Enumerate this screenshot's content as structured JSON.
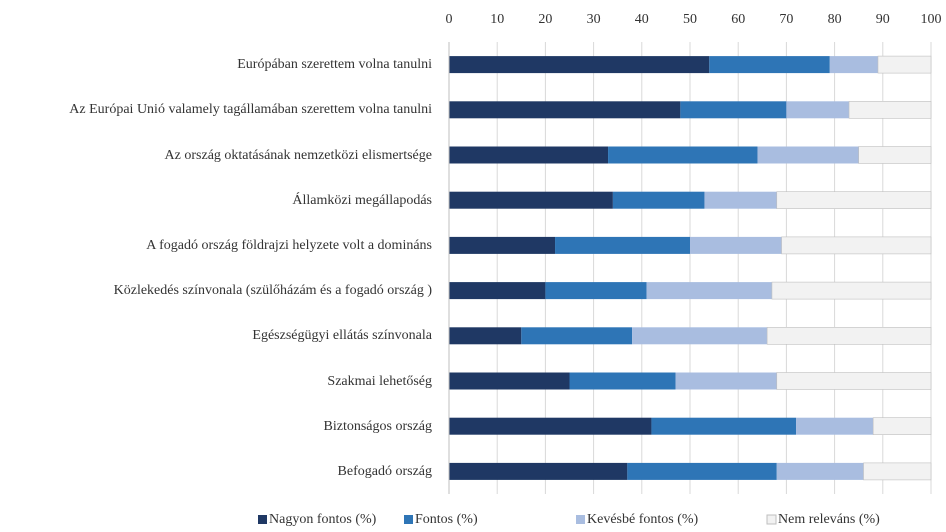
{
  "chart_data": {
    "type": "stacked-bar-horizontal",
    "categories": [
      "Európában szerettem volna tanulni",
      "Az Európai Unió valamely tagállamában szerettem volna tanulni",
      "Az ország oktatásának nemzetközi elismertsége",
      "Államközi megállapodás",
      "A fogadó ország földrajzi helyzete volt a domináns",
      "Közlekedés színvonala (szülőházám és a fogadó ország )",
      "Egészségügyi ellátás színvonala",
      "Szakmai lehetőség",
      "Biztonságos ország",
      "Befogadó ország"
    ],
    "series": [
      {
        "name": "Nagyon fontos  (%)",
        "color": "#1f3864",
        "values": [
          54,
          48,
          33,
          34,
          22,
          20,
          15,
          25,
          42,
          37
        ]
      },
      {
        "name": "Fontos  (%)",
        "color": "#2e75b6",
        "values": [
          25,
          22,
          31,
          19,
          28,
          21,
          23,
          22,
          30,
          31
        ]
      },
      {
        "name": "Kevésbé fontos  (%)",
        "color": "#a9bde0",
        "values": [
          10,
          13,
          21,
          15,
          19,
          26,
          28,
          21,
          16,
          18
        ]
      },
      {
        "name": "Nem releváns  (%)",
        "color": "#f2f2f2",
        "values": [
          11,
          17,
          15,
          32,
          31,
          33,
          34,
          32,
          12,
          14
        ]
      }
    ],
    "xlim": [
      0,
      100
    ],
    "xticks": [
      0,
      10,
      20,
      30,
      40,
      50,
      60,
      70,
      80,
      90,
      100
    ],
    "grid": true,
    "legend": "bottom"
  }
}
